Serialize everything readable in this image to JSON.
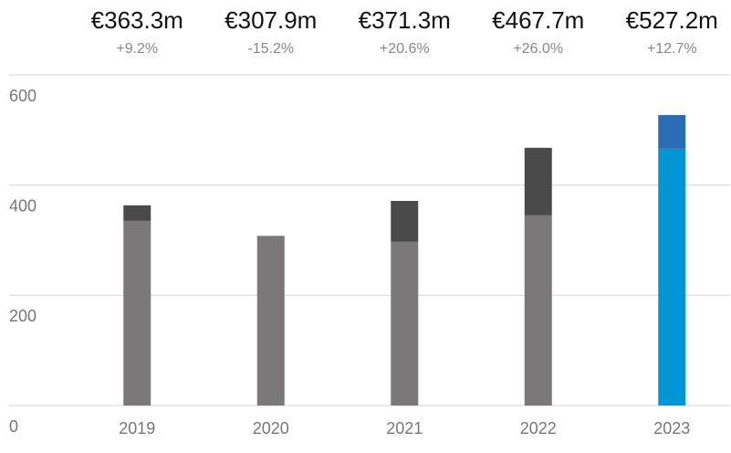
{
  "chart_data": {
    "type": "stacked-bar",
    "categories": [
      "2019",
      "2020",
      "2021",
      "2022",
      "2023"
    ],
    "annotations": [
      {
        "total": "€363.3m",
        "change": "+9.2%"
      },
      {
        "total": "€307.9m",
        "change": "-15.2%"
      },
      {
        "total": "€371.3m",
        "change": "+20.6%"
      },
      {
        "total": "€467.7m",
        "change": "+26.0%"
      },
      {
        "total": "€527.2m",
        "change": "+12.7%"
      }
    ],
    "series": [
      {
        "colors": [
          "#7a7878",
          "#7a7878",
          "#7a7878",
          "#7a7878",
          "#0096d6"
        ],
        "values": [
          335,
          307.9,
          297,
          345,
          466
        ]
      },
      {
        "colors": [
          "#4a4a4a",
          "#4a4a4a",
          "#4a4a4a",
          "#4a4a4a",
          "#2a6db5"
        ],
        "values": [
          28.3,
          null,
          74.3,
          122.7,
          61.2
        ]
      }
    ],
    "ylim": [
      0,
      600
    ],
    "yticks": [
      0,
      200,
      400,
      600
    ],
    "grid": true
  }
}
